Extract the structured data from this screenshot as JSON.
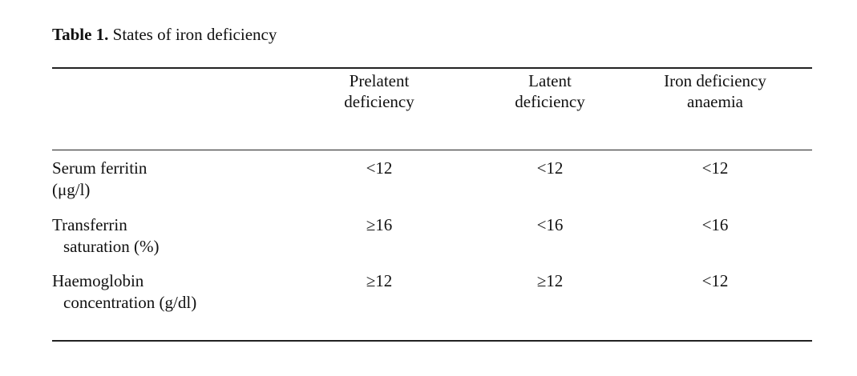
{
  "caption": {
    "label": "Table 1.",
    "text": "States of iron deficiency"
  },
  "table": {
    "columns": [
      [
        "Prelatent",
        "deficiency"
      ],
      [
        "Latent",
        "deficiency"
      ],
      [
        "Iron deficiency",
        "anaemia"
      ]
    ],
    "rows": [
      {
        "label": [
          "Serum ferritin",
          "(μg/l)"
        ],
        "cells": [
          "<12",
          "<12",
          "<12"
        ]
      },
      {
        "label": [
          "Transferrin",
          "saturation (%)"
        ],
        "cells": [
          "≥16",
          "<16",
          "<16"
        ]
      },
      {
        "label": [
          "Haemoglobin",
          "concentration (g/dl)"
        ],
        "cells": [
          "≥12",
          "≥12",
          "<12"
        ]
      }
    ]
  }
}
